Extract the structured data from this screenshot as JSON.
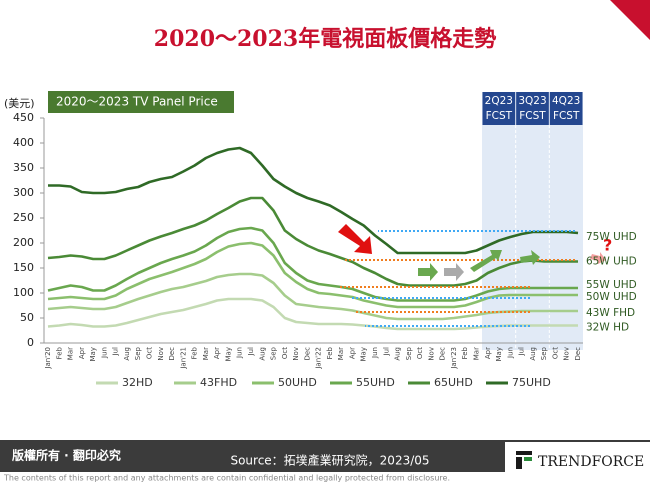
{
  "chart_data": {
    "type": "line",
    "title": "2020～2023年電視面板價格走勢",
    "subtitle": "2020～2023 TV Panel Price",
    "y_label": "(美元)",
    "categories": [
      "Jan'20",
      "Feb",
      "Mar",
      "Apr",
      "May",
      "Jun",
      "Jul",
      "Aug",
      "Sep",
      "Oct",
      "Nov",
      "Dec",
      "Jan'21",
      "Feb",
      "Mar",
      "Apr",
      "May",
      "Jun",
      "Jul",
      "Aug",
      "Sep",
      "Oct",
      "Nov",
      "Dec",
      "Jan'22",
      "Feb",
      "Mar",
      "Apr",
      "May",
      "Jun",
      "Jul",
      "Aug",
      "Sep",
      "Oct",
      "Nov",
      "Dec",
      "Jan'23",
      "Feb",
      "Mar",
      "Apr",
      "May",
      "Jun",
      "Jul",
      "Aug",
      "Sep",
      "Oct",
      "Nov",
      "Dec"
    ],
    "series": [
      {
        "name": "32HD",
        "end_label": "32W HD",
        "color": "#c3dab2",
        "values": [
          33,
          35,
          38,
          36,
          33,
          33,
          35,
          40,
          46,
          52,
          58,
          62,
          66,
          72,
          78,
          85,
          88,
          88,
          88,
          85,
          72,
          50,
          42,
          40,
          38,
          38,
          38,
          37,
          35,
          33,
          30,
          28,
          28,
          28,
          28,
          28,
          28,
          29,
          31,
          33,
          34,
          35,
          35,
          35,
          35,
          35,
          35,
          35
        ]
      },
      {
        "name": "43FHD",
        "end_label": "43W FHD",
        "color": "#a6cd8c",
        "values": [
          68,
          70,
          72,
          70,
          68,
          68,
          72,
          80,
          88,
          95,
          102,
          108,
          112,
          118,
          124,
          132,
          136,
          138,
          138,
          135,
          120,
          95,
          78,
          75,
          72,
          70,
          68,
          65,
          60,
          55,
          50,
          48,
          48,
          48,
          48,
          48,
          50,
          53,
          56,
          60,
          62,
          63,
          64,
          64,
          64,
          64,
          64,
          64
        ]
      },
      {
        "name": "50UHD",
        "end_label": "50W UHD",
        "color": "#8bbf6d",
        "values": [
          88,
          90,
          92,
          90,
          88,
          88,
          95,
          108,
          118,
          128,
          135,
          142,
          150,
          158,
          168,
          182,
          193,
          198,
          200,
          195,
          175,
          140,
          122,
          108,
          100,
          98,
          95,
          92,
          85,
          80,
          75,
          72,
          72,
          72,
          72,
          72,
          72,
          75,
          82,
          90,
          95,
          96,
          96,
          96,
          96,
          96,
          96,
          96
        ]
      },
      {
        "name": "55UHD",
        "end_label": "55W UHD",
        "color": "#69a74e",
        "values": [
          105,
          110,
          115,
          112,
          105,
          105,
          115,
          128,
          140,
          150,
          160,
          168,
          175,
          183,
          195,
          210,
          222,
          228,
          230,
          225,
          200,
          160,
          140,
          125,
          118,
          115,
          112,
          108,
          100,
          92,
          88,
          85,
          85,
          85,
          85,
          85,
          85,
          88,
          95,
          103,
          108,
          110,
          110,
          110,
          110,
          110,
          110,
          110
        ]
      },
      {
        "name": "65UHD",
        "end_label": "65W UHD",
        "color": "#4a8a36",
        "values": [
          170,
          172,
          175,
          173,
          168,
          168,
          175,
          185,
          195,
          205,
          213,
          220,
          228,
          235,
          245,
          258,
          270,
          283,
          290,
          290,
          265,
          225,
          208,
          195,
          185,
          178,
          170,
          162,
          150,
          140,
          128,
          118,
          115,
          115,
          115,
          115,
          115,
          118,
          125,
          140,
          150,
          158,
          163,
          165,
          163,
          163,
          163,
          163
        ]
      },
      {
        "name": "75UHD",
        "end_label": "75W UHD",
        "color": "#2f6a26",
        "values": [
          315,
          315,
          313,
          302,
          300,
          300,
          302,
          308,
          312,
          322,
          328,
          332,
          343,
          355,
          370,
          380,
          387,
          390,
          380,
          355,
          328,
          313,
          300,
          290,
          283,
          275,
          262,
          248,
          235,
          215,
          198,
          180,
          180,
          180,
          180,
          180,
          180,
          180,
          185,
          195,
          205,
          212,
          218,
          222,
          222,
          222,
          222,
          220
        ]
      }
    ],
    "forecast": [
      [
        "2Q23",
        "FCST"
      ],
      [
        "3Q23",
        "FCST"
      ],
      [
        "4Q23",
        "FCST"
      ]
    ],
    "ylim": [
      0,
      450
    ],
    "yticks": [
      0,
      50,
      100,
      150,
      200,
      250,
      300,
      350,
      400,
      450
    ],
    "legend": "bottom",
    "footer": {
      "rights": "版權所有 · 翻印必究",
      "source": "Source：拓墣產業研究院，2023/05",
      "logo": "TRENDFORCE",
      "disclaimer": "The contents of this report and any attachments are contain confidential and legally protected from disclosure."
    }
  }
}
